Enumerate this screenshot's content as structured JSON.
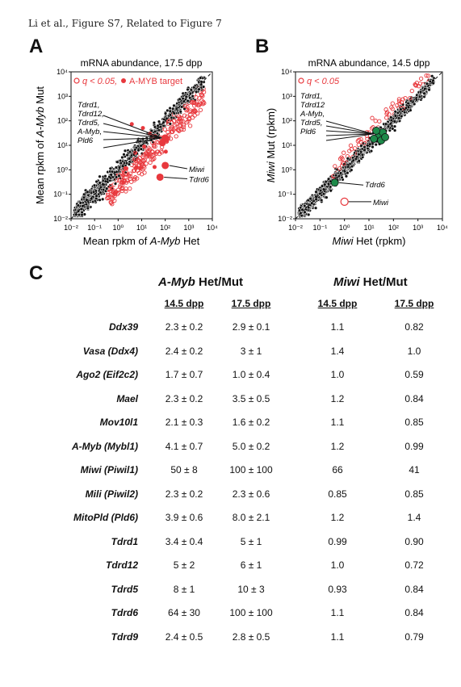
{
  "header": "Li et al., Figure S7, Related to Figure 7",
  "panel_letters": [
    "A",
    "B",
    "C"
  ],
  "colors": {
    "red": "#e8383d",
    "green": "#1e8a4a",
    "black": "#111111",
    "grey": "#cccccc"
  },
  "panelA": {
    "title": "mRNA abundance, 17.5 dpp",
    "legend_q": "q < 0.05,",
    "legend_target": "A-MYB target",
    "ylabel_pre": "Mean rpkm of ",
    "ylabel_italic": "A-Myb",
    "ylabel_post": " Mut",
    "xlabel_pre": "Mean rpkm of ",
    "xlabel_italic": "A-Myb",
    "xlabel_post": " Het",
    "callout_lines": [
      "Tdrd1,",
      "Tdrd12,",
      "Tdrd5,",
      "A-Myb,",
      "Pld6"
    ],
    "label_miwi": "Miwi",
    "label_tdrd6": "Tdrd6"
  },
  "panelB": {
    "title": "mRNA abundance, 14.5 dpp",
    "legend_q": "q < 0.05",
    "ylabel_italic": "Miwi",
    "ylabel_post": " Mut (rpkm)",
    "xlabel_italic": "Miwi",
    "xlabel_post": " Het (rpkm)",
    "callout_lines": [
      "Tdrd1,",
      "Tdrd12",
      "A-Myb,",
      "Tdrd5,",
      "Pld6"
    ],
    "label_tdrd6": "Tdrd6",
    "label_miwi": "Miwi"
  },
  "ticks": [
    "10⁻²",
    "10⁻¹",
    "10⁰",
    "10¹",
    "10²",
    "10³",
    "10⁴"
  ],
  "chart_data": [
    {
      "type": "scatter",
      "title": "mRNA abundance, 17.5 dpp",
      "xlabel": "Mean rpkm of A-Myb Het",
      "ylabel": "Mean rpkm of A-Myb Mut",
      "scale": "log10",
      "xlim": [
        0.01,
        10000
      ],
      "ylim": [
        0.01,
        10000
      ],
      "highlighted": [
        {
          "name": "Tdrd1/Tdrd12/Tdrd5/A-Myb/Pld6",
          "x": 100,
          "y": 20
        },
        {
          "name": "Miwi",
          "x": 100,
          "y": 1.5
        },
        {
          "name": "Tdrd6",
          "x": 60,
          "y": 0.5
        }
      ]
    },
    {
      "type": "scatter",
      "title": "mRNA abundance, 14.5 dpp",
      "xlabel": "Miwi Het (rpkm)",
      "ylabel": "Miwi Mut (rpkm)",
      "scale": "log10",
      "xlim": [
        0.01,
        10000
      ],
      "ylim": [
        0.01,
        10000
      ],
      "highlighted": [
        {
          "name": "Tdrd1/Tdrd12/A-Myb/Tdrd5/Pld6",
          "x": 25,
          "y": 25
        },
        {
          "name": "Tdrd6",
          "x": 0.4,
          "y": 0.3
        },
        {
          "name": "Miwi",
          "x": 1,
          "y": 0.02
        }
      ]
    }
  ],
  "table": {
    "group1_italic": "A-Myb",
    "group1_post": " Het/Mut",
    "group2_italic": "Miwi",
    "group2_post": " Het/Mut",
    "subheaders": [
      "14.5 dpp",
      "17.5 dpp",
      "14.5 dpp",
      "17.5 dpp"
    ],
    "rows": [
      {
        "gene": "Ddx39",
        "values": [
          "2.3 ± 0.2",
          "2.9 ± 0.1",
          "1.1",
          "0.82"
        ]
      },
      {
        "gene": "Vasa (Ddx4)",
        "values": [
          "2.4 ± 0.2",
          "3 ± 1",
          "1.4",
          "1.0"
        ]
      },
      {
        "gene": "Ago2 (Eif2c2)",
        "values": [
          "1.7 ± 0.7",
          "1.0 ± 0.4",
          "1.0",
          "0.59"
        ]
      },
      {
        "gene": "Mael",
        "values": [
          "2.3 ± 0.2",
          "3.5 ± 0.5",
          "1.2",
          "0.84"
        ]
      },
      {
        "gene": "Mov10l1",
        "values": [
          "2.1 ± 0.3",
          "1.6 ± 0.2",
          "1.1",
          "0.85"
        ]
      },
      {
        "gene": "A-Myb (Mybl1)",
        "values": [
          "4.1 ± 0.7",
          "5.0 ± 0.2",
          "1.2",
          "0.99"
        ]
      },
      {
        "gene": "Miwi (Piwil1)",
        "values": [
          "50 ± 8",
          "100 ± 100",
          "66",
          "41"
        ]
      },
      {
        "gene": "Mili (Piwil2)",
        "values": [
          "2.3 ± 0.2",
          "2.3 ± 0.6",
          "0.85",
          "0.85"
        ]
      },
      {
        "gene": "MitoPld (Pld6)",
        "values": [
          "3.9 ± 0.6",
          "8.0 ± 2.1",
          "1.2",
          "1.4"
        ]
      },
      {
        "gene": "Tdrd1",
        "values": [
          "3.4 ± 0.4",
          "5 ± 1",
          "0.99",
          "0.90"
        ]
      },
      {
        "gene": "Tdrd12",
        "values": [
          "5 ± 2",
          "6 ± 1",
          "1.0",
          "0.72"
        ]
      },
      {
        "gene": "Tdrd5",
        "values": [
          "8 ± 1",
          "10 ± 3",
          "0.93",
          "0.84"
        ]
      },
      {
        "gene": "Tdrd6",
        "values": [
          "64 ± 30",
          "100 ± 100",
          "1.1",
          "0.84"
        ]
      },
      {
        "gene": "Tdrd9",
        "values": [
          "2.4 ± 0.5",
          "2.8 ± 0.5",
          "1.1",
          "0.79"
        ]
      }
    ]
  }
}
